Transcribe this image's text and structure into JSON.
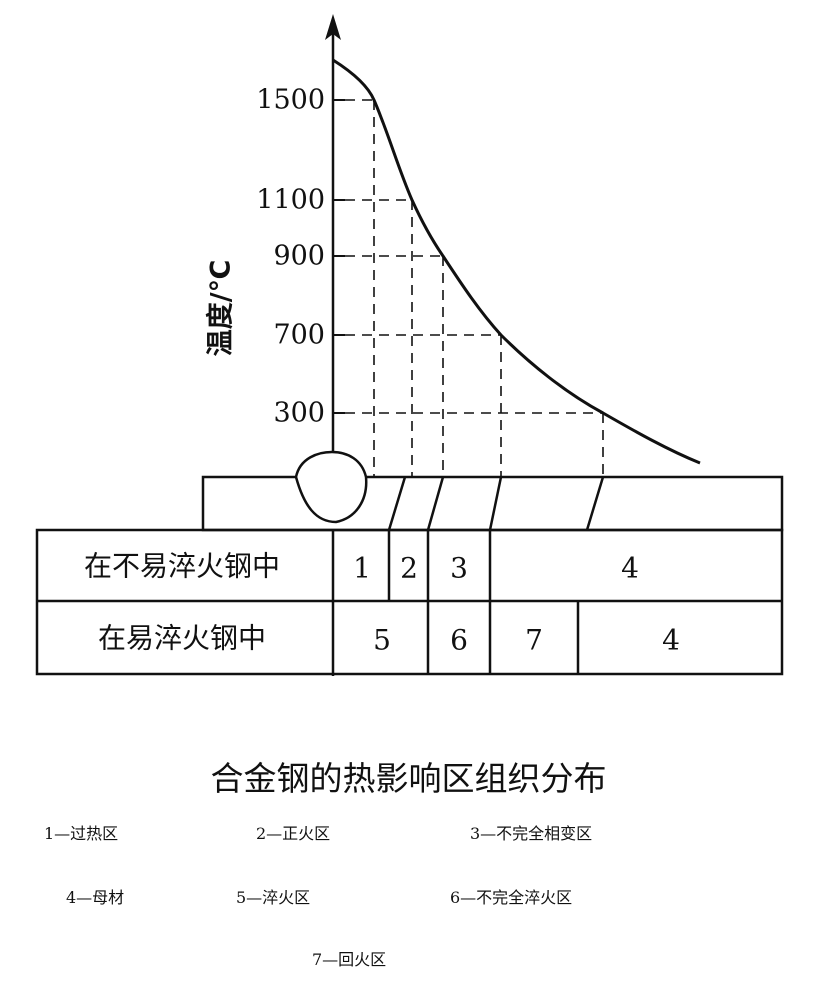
{
  "y_axis_label": "温度/℃",
  "y_ticks": [
    "1500",
    "1100",
    "900",
    "700",
    "300"
  ],
  "table": {
    "rows": [
      {
        "label": "在不易淬火钢中",
        "cells": [
          "1",
          "2",
          "3",
          "4"
        ]
      },
      {
        "label": "在易淬火钢中",
        "cells": [
          "5",
          "6",
          "7",
          "4"
        ]
      }
    ]
  },
  "caption": "合金钢的热影响区组织分布",
  "legend": [
    "1—过热区",
    "2—正火区",
    "3—不完全相变区",
    "4—母材",
    "5—淬火区",
    "6—不完全淬火区",
    "7—回火区"
  ]
}
